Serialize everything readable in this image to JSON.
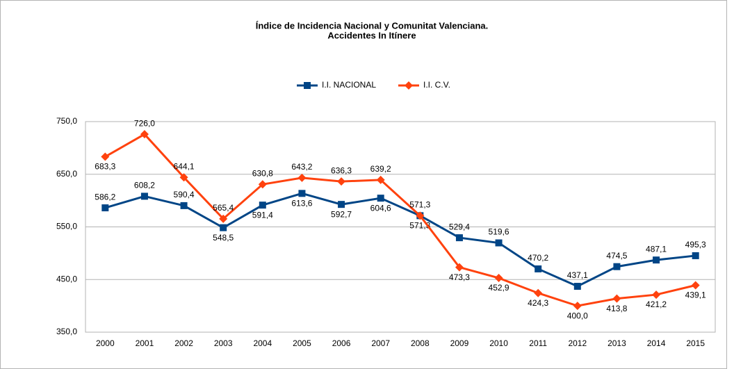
{
  "chart_data": {
    "type": "line",
    "title": "Índice de Incidencia Nacional y Comunitat Valenciana.",
    "subtitle": "Accidentes In Itínere",
    "categories": [
      "2000",
      "2001",
      "2002",
      "2003",
      "2004",
      "2005",
      "2006",
      "2007",
      "2008",
      "2009",
      "2010",
      "2011",
      "2012",
      "2013",
      "2014",
      "2015"
    ],
    "series": [
      {
        "name": "I.I. NACIONAL",
        "color": "#004586",
        "marker": "square",
        "values": [
          586.2,
          608.2,
          590.4,
          548.5,
          591.4,
          613.6,
          592.7,
          604.6,
          571.3,
          529.4,
          519.6,
          470.2,
          437.1,
          474.5,
          487.1,
          495.3
        ],
        "value_labels": [
          "586,2",
          "608,2",
          "590,4",
          "548,5",
          "591,4",
          "613,6",
          "592,7",
          "604,6",
          "571,3",
          "529,4",
          "519,6",
          "470,2",
          "437,1",
          "474,5",
          "487,1",
          "495,3"
        ]
      },
      {
        "name": "I.I. C.V.",
        "color": "#ff420e",
        "marker": "diamond",
        "values": [
          683.3,
          726.0,
          644.1,
          565.4,
          630.8,
          643.2,
          636.3,
          639.2,
          571.3,
          473.3,
          452.9,
          424.3,
          400.0,
          413.8,
          421.2,
          439.1
        ],
        "value_labels": [
          "683,3",
          "726,0",
          "644,1",
          "565,4",
          "630,8",
          "643,2",
          "636,3",
          "639,2",
          "571,3",
          "473,3",
          "452,9",
          "424,3",
          "400,0",
          "413,8",
          "421,2",
          "439,1"
        ]
      }
    ],
    "ylim": [
      350,
      750
    ],
    "yticks": [
      {
        "value": 350,
        "label": "350,0"
      },
      {
        "value": 450,
        "label": "450,0"
      },
      {
        "value": 550,
        "label": "550,0"
      },
      {
        "value": 650,
        "label": "650,0"
      },
      {
        "value": 750,
        "label": "750,0"
      }
    ],
    "grid": true,
    "legend": "top"
  }
}
